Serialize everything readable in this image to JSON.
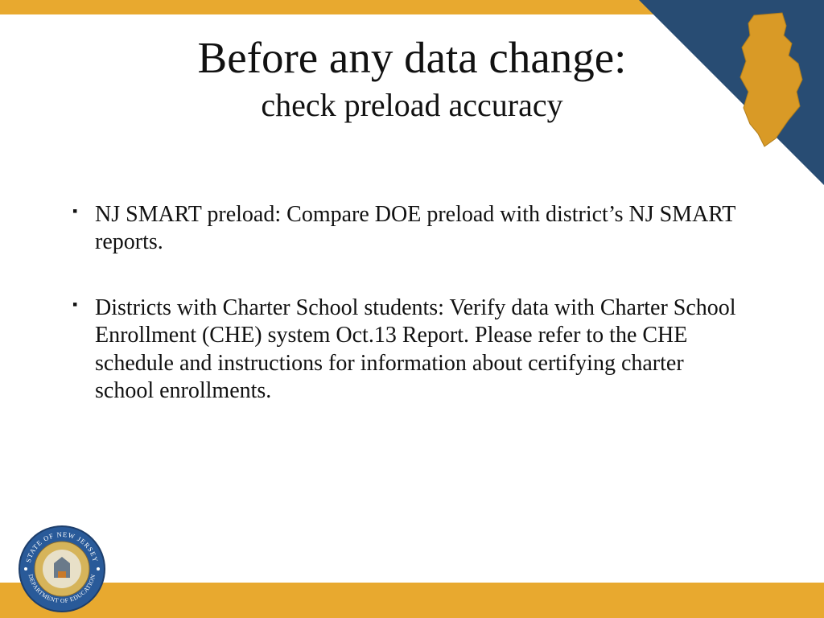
{
  "colors": {
    "accent_yellow": "#e8a92f",
    "accent_navy": "#284c73",
    "nj_fill": "#d99a26",
    "seal_outer": "#295a99",
    "seal_inner": "#d6b45a",
    "seal_text": "#ffffff",
    "text": "#111111",
    "background": "#ffffff"
  },
  "layout": {
    "top_bar_height": 18,
    "bottom_bar_height": 44,
    "corner_triangle_size": 230
  },
  "title": {
    "main": "Before any data change:",
    "sub": "check preload accuracy",
    "main_fontsize": 55,
    "sub_fontsize": 40
  },
  "bullets": {
    "fontsize": 28,
    "items": [
      "NJ SMART preload:  Compare DOE preload with district’s NJ SMART reports.",
      "Districts with Charter School students:  Verify data with Charter School Enrollment (CHE) system Oct.13 Report. Please refer to the CHE schedule and instructions for information about certifying charter school enrollments."
    ]
  },
  "seal": {
    "outer_text_top": "STATE OF NEW JERSEY",
    "outer_text_bottom": "DEPARTMENT OF EDUCATION"
  }
}
